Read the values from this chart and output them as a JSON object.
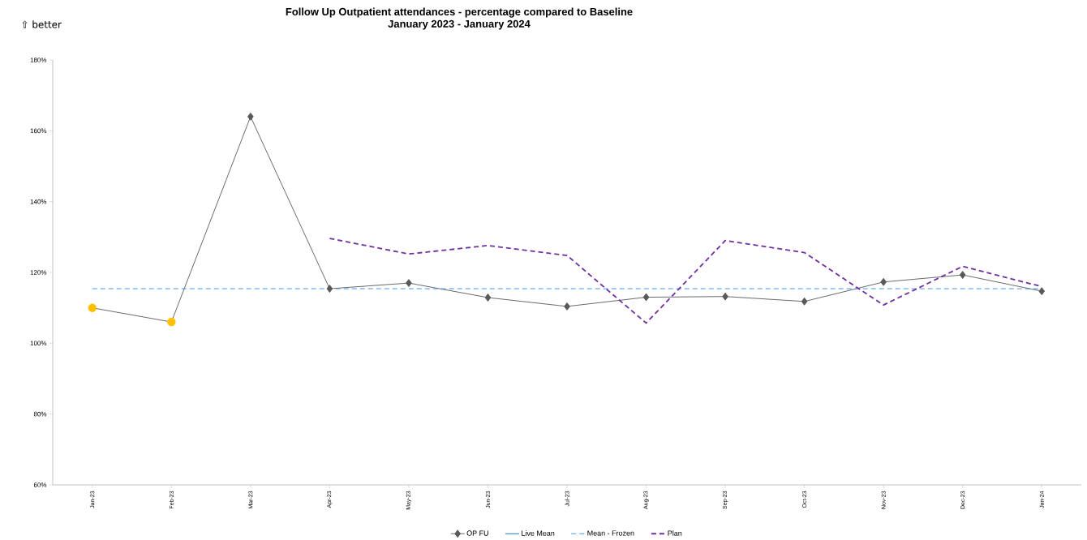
{
  "chart_data": {
    "type": "line",
    "title": "Follow Up Outpatient attendances - percentage compared to Baseline",
    "subtitle": "January 2023 - January 2024",
    "annotations": [
      "⇧ better"
    ],
    "categories": [
      "Jan-23",
      "Feb-23",
      "Mar-23",
      "Apr-23",
      "May-23",
      "Jun-23",
      "Jul-23",
      "Aug-23",
      "Sep-23",
      "Oct-23",
      "Nov-23",
      "Dec-23",
      "Jan-24"
    ],
    "series": [
      {
        "name": "OP FU",
        "color": "#595959",
        "marker": "diamond",
        "line_style": "solid",
        "values": [
          110,
          106,
          164,
          115.4,
          117,
          112.9,
          110.4,
          113,
          113.2,
          111.8,
          117.3,
          119.3,
          114.7
        ]
      },
      {
        "type": "scatter",
        "color": "#ffc000",
        "marker": "circle",
        "values": [
          110,
          106,
          null,
          null,
          null,
          null,
          null,
          null,
          null,
          null,
          null,
          null,
          null
        ]
      },
      {
        "name": "Live Mean",
        "color": "#0070c0",
        "marker": "none",
        "line_style": "solid",
        "values": [
          null,
          null,
          null,
          null,
          null,
          null,
          null,
          null,
          null,
          null,
          null,
          null,
          null
        ]
      },
      {
        "name": "Mean - Frozen",
        "color": "#2e8ae6",
        "marker": "none",
        "line_style": "dashed",
        "values": [
          115.4,
          115.4,
          115.4,
          115.4,
          115.4,
          115.4,
          115.4,
          115.4,
          115.4,
          115.4,
          115.4,
          115.4,
          115.4
        ]
      },
      {
        "name": "Plan",
        "color": "#7030a0",
        "marker": "none",
        "line_style": "dashed",
        "values": [
          null,
          null,
          null,
          129.6,
          125.2,
          127.6,
          124.8,
          105.7,
          129,
          125.6,
          110.8,
          121.7,
          116
        ]
      }
    ],
    "ylim": [
      60,
      180
    ],
    "yticks": [
      {
        "value": 60,
        "label": "60%"
      },
      {
        "value": 80,
        "label": "80%"
      },
      {
        "value": 100,
        "label": "100%"
      },
      {
        "value": 120,
        "label": "120%"
      },
      {
        "value": 140,
        "label": "140%"
      },
      {
        "value": 160,
        "label": "160%"
      },
      {
        "value": 180,
        "label": "180%"
      }
    ],
    "grid": false,
    "legend": "bottom"
  }
}
